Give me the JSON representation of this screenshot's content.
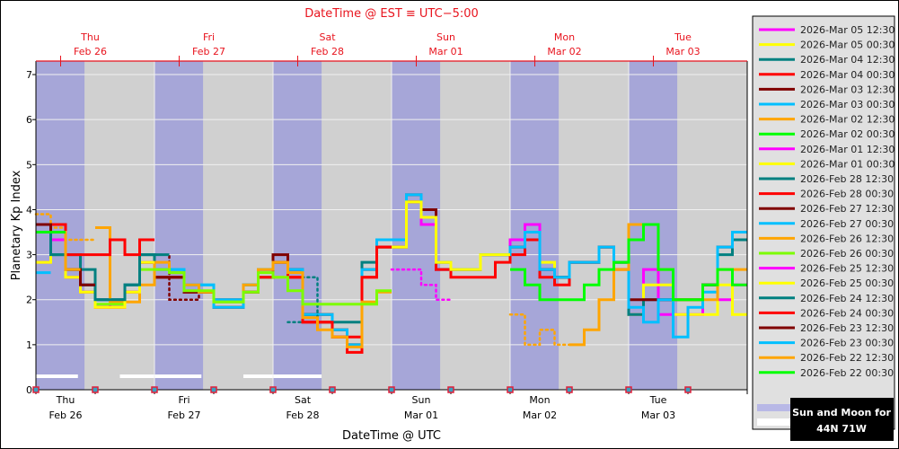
{
  "chart_data": {
    "type": "line",
    "step": true,
    "interval_hours": 3,
    "top_axis_title": "DateTime @ EST ≡ UTC−5:00",
    "xlabel": "DateTime @ UTC",
    "ylabel": "Planetary Kp Index",
    "xlim": [
      "2026-02-26T00:00",
      "2026-03-04T00:00"
    ],
    "ylim": [
      0,
      7.3
    ],
    "yticks": [
      0,
      1,
      2,
      3,
      4,
      5,
      6,
      7
    ],
    "bottom_tick_labels": [
      {
        "day": "Thu",
        "date": "Feb 26"
      },
      {
        "day": "Fri",
        "date": "Feb 27"
      },
      {
        "day": "Sat",
        "date": "Feb 28"
      },
      {
        "day": "Sun",
        "date": "Mar 01"
      },
      {
        "day": "Mon",
        "date": "Mar 02"
      },
      {
        "day": "Tue",
        "date": "Mar 03"
      }
    ],
    "top_tick_labels": [
      {
        "day": "Thu",
        "date": "Feb 26"
      },
      {
        "day": "Fri",
        "date": "Feb 27"
      },
      {
        "day": "Sat",
        "date": "Feb 28"
      },
      {
        "day": "Sun",
        "date": "Mar 01"
      },
      {
        "day": "Mon",
        "date": "Mar 02"
      },
      {
        "day": "Tue",
        "date": "Mar 03"
      }
    ],
    "grid": true,
    "legend_placement": "right",
    "colors": {
      "plot_bg": "#d0d0d0",
      "night": "#a6a6d8",
      "moon": "#ffffff",
      "top_axis": "#e8141e"
    },
    "night_bands": [
      [
        "2026-02-26T00:00",
        "2026-02-26T09:50"
      ],
      [
        "2026-02-27T00:00",
        "2026-02-27T09:50"
      ],
      [
        "2026-02-28T00:00",
        "2026-02-28T09:50"
      ],
      [
        "2026-03-01T00:00",
        "2026-03-01T09:50"
      ],
      [
        "2026-03-02T00:00",
        "2026-03-02T09:50"
      ],
      [
        "2026-03-03T00:00",
        "2026-03-03T09:50"
      ]
    ],
    "moon_bars": [
      [
        "2026-02-26T00:00",
        "2026-02-26T08:30"
      ],
      [
        "2026-02-26T17:00",
        "2026-02-27T09:30"
      ],
      [
        "2026-02-27T18:00",
        "2026-02-28T09:50"
      ]
    ],
    "series": [
      {
        "name": "2026-Mar 05 12:30",
        "color": "#ff00ff",
        "start": "2026-02-26T00:00",
        "values": [
          3.5,
          3.33,
          2.67,
          2.33,
          2.0,
          1.83,
          2.17,
          2.83,
          2.5,
          2.5,
          2.17,
          2.17,
          1.83,
          1.83,
          2.17,
          2.5,
          2.5,
          2.67,
          1.67,
          1.67,
          1.33,
          1.0,
          2.67,
          3.33,
          3.33,
          4.17,
          3.67,
          2.67,
          2.67,
          2.67,
          3.0,
          3.0,
          3.33,
          3.67,
          2.67,
          2.5,
          2.83,
          2.83,
          3.17,
          2.83,
          1.67,
          2.67,
          1.67,
          1.67,
          1.67,
          2.33,
          2.0,
          2.33
        ]
      },
      {
        "name": "2026-Mar 05 00:30",
        "color": "#ffff00",
        "start": "2026-02-26T00:00",
        "values": [
          2.83,
          3.5,
          2.5,
          2.17,
          1.83,
          1.83,
          2.17,
          2.83,
          2.5,
          2.5,
          2.17,
          2.17,
          1.83,
          1.83,
          2.17,
          2.5,
          2.5,
          2.5,
          1.67,
          1.67,
          1.33,
          1.0,
          2.67,
          3.17,
          3.17,
          4.17,
          3.83,
          2.83,
          2.67,
          2.67,
          3.0,
          3.0,
          3.17,
          3.5,
          2.83,
          2.5,
          2.83,
          2.83,
          3.17,
          2.83,
          1.67,
          2.33,
          2.33,
          1.67,
          1.67,
          1.67,
          2.33,
          1.67
        ]
      },
      {
        "name": "2026-Mar 04 12:30",
        "color": "#008080",
        "start": "2026-02-26T00:00",
        "values": [
          3.67,
          3.0,
          2.67,
          2.33,
          2.0,
          2.0,
          2.33,
          3.0,
          2.5,
          2.5,
          2.17,
          2.17,
          1.83,
          1.83,
          2.17,
          2.5,
          2.83,
          2.67,
          1.67,
          1.5,
          1.5,
          1.5,
          2.83,
          3.17,
          3.17,
          4.17,
          3.83,
          2.67,
          2.67,
          2.67,
          3.0,
          3.0,
          3.17,
          3.5,
          2.67,
          2.5,
          2.83,
          2.83,
          3.17,
          2.83,
          1.67,
          2.0,
          2.0,
          2.0,
          2.0,
          2.33,
          3.0,
          3.33
        ]
      },
      {
        "name": "2026-Mar 04 00:30",
        "color": "#ff0000",
        "start": "2026-02-26T00:00",
        "values": [
          3.67,
          3.5,
          2.5,
          2.17,
          1.83,
          1.83,
          2.17,
          2.83,
          2.5,
          2.5,
          2.17,
          2.17,
          1.83,
          1.83,
          2.17,
          2.5,
          2.83,
          2.5,
          1.5,
          1.5,
          1.17,
          0.83,
          2.5,
          3.17,
          3.17,
          4.17,
          3.83,
          2.67,
          2.5,
          2.5,
          2.5,
          2.83,
          3.0,
          3.33,
          2.5,
          2.33,
          2.83,
          2.83,
          3.17,
          2.67
        ]
      },
      {
        "name": "2026-Mar 03 12:30",
        "color": "#800000",
        "start": "2026-02-26T00:00",
        "values": [
          3.67,
          3.5,
          2.67,
          2.33,
          2.0,
          2.0,
          2.33,
          2.83,
          2.5,
          2.5,
          2.17,
          2.17,
          2.0,
          2.0,
          2.33,
          2.67,
          3.0,
          2.67,
          1.67,
          1.67,
          1.33,
          1.0,
          2.67,
          3.33,
          3.33,
          4.33,
          4.0,
          2.83,
          2.67,
          2.67,
          3.0,
          3.0,
          3.17,
          3.5,
          2.67,
          2.5,
          2.83,
          2.83,
          3.17,
          2.83,
          2.0,
          2.0,
          2.0,
          2.0,
          2.0,
          2.33,
          3.17,
          3.5
        ]
      },
      {
        "name": "2026-Mar 03 00:30",
        "color": "#00bfff",
        "start": "2026-02-26T00:00",
        "values": [
          3.5,
          3.33,
          2.67,
          2.33,
          2.0,
          2.0,
          2.33,
          2.83,
          2.67,
          2.67,
          2.33,
          2.33,
          1.83,
          1.83,
          2.33,
          2.67,
          2.83,
          2.67,
          1.67,
          1.67,
          1.33,
          1.0,
          2.67,
          3.33,
          3.33,
          4.33,
          3.83,
          2.83,
          2.67,
          2.67,
          3.0,
          3.0,
          3.17,
          3.5,
          2.67,
          2.5,
          2.83,
          2.83,
          3.17,
          2.83,
          1.83,
          1.5,
          2.0,
          1.17,
          1.83,
          2.17,
          3.17,
          3.5
        ]
      },
      {
        "name": "2026-Mar 02 12:30",
        "color": "#ffa500",
        "start": "2026-03-02T00:00",
        "dotted_count": 4,
        "values": [
          1.67,
          1.0,
          1.33,
          1.0,
          1.0,
          1.33,
          2.0,
          2.67,
          3.67,
          3.67,
          2.67,
          2.0,
          2.0,
          2.0,
          2.67,
          2.67
        ]
      },
      {
        "name": "2026-Mar 02 00:30",
        "color": "#00ff00",
        "start": "2026-03-02T00:00",
        "values": [
          2.67,
          2.33,
          2.0,
          2.0,
          2.0,
          2.33,
          2.67,
          2.83,
          3.33,
          3.67,
          2.67,
          2.0,
          2.0,
          2.33,
          2.67,
          2.33
        ]
      },
      {
        "name": "2026-Mar 01 12:30",
        "color": "#ff00ff",
        "start": "2026-03-01T00:00",
        "dotted_count": 4,
        "values": [
          2.67,
          2.67,
          2.33,
          2.0
        ]
      },
      {
        "name": "2026-Mar 01 00:30",
        "color": "#ffff00",
        "start": "2026-03-01T00:00",
        "values": [
          3.17,
          4.17,
          3.83,
          2.83,
          2.67,
          2.67,
          3.0,
          3.0
        ]
      },
      {
        "name": "2026-Feb 28 12:30",
        "color": "#008080",
        "start": "2026-02-28T03:00",
        "dotted_count": 5,
        "values": [
          1.5,
          2.5,
          1.33,
          1.17,
          1.17
        ]
      },
      {
        "name": "2026-Feb 28 00:30",
        "color": "#ff0000",
        "start": "2026-02-28T00:00",
        "values": [
          2.83,
          2.5,
          1.5,
          1.5,
          1.17,
          1.17,
          2.5,
          3.17
        ]
      },
      {
        "name": "2026-Feb 27 12:30",
        "color": "#800000",
        "start": "2026-02-27T00:00",
        "dotted_count": 6,
        "values": [
          3.0,
          2.0,
          2.0,
          2.33,
          2.0,
          2.0
        ]
      },
      {
        "name": "2026-Feb 27 00:30",
        "color": "#00bfff",
        "start": "2026-02-27T00:00",
        "values": [
          2.67,
          2.67,
          2.33,
          2.33,
          2.0,
          2.0,
          2.33,
          2.67
        ]
      },
      {
        "name": "2026-Feb 26 12:30",
        "color": "#ffa500",
        "start": "2026-02-26T00:00",
        "dotted_count": 4,
        "values": [
          3.9,
          3.6,
          3.33,
          3.33,
          3.6,
          1.95,
          1.95,
          2.33,
          2.83,
          2.6,
          2.33,
          2.17,
          1.95,
          1.95,
          2.33,
          2.67,
          2.83,
          2.6,
          1.6,
          1.33,
          1.17,
          0.95,
          1.95,
          2.17
        ]
      },
      {
        "name": "2026-Feb 26 00:30",
        "color": "#7cfc00",
        "start": "2026-02-26T00:00",
        "values": [
          3.5,
          3.5,
          2.5,
          2.17,
          1.9,
          1.9,
          2.17,
          2.67,
          2.67,
          2.6,
          2.2,
          2.2,
          1.95,
          1.95,
          2.17,
          2.6,
          2.5,
          2.2,
          1.9,
          1.9,
          1.9,
          1.9,
          1.9,
          2.2
        ]
      },
      {
        "name": "2026-Feb 25 12:30",
        "color": "#ff00ff",
        "start": "2026-02-26T00:00",
        "values": [
          2.83,
          3.33,
          2.5,
          2.17,
          1.83,
          1.83,
          2.17,
          2.83
        ]
      },
      {
        "name": "2026-Feb 25 00:30",
        "color": "#ffff00",
        "start": "2026-02-26T00:00",
        "values": [
          2.83,
          3.5,
          2.5,
          2.17,
          1.83,
          1.83,
          2.17,
          2.83
        ]
      },
      {
        "name": "2026-Feb 24 12:30",
        "color": "#008080",
        "start": "2026-02-26T00:00",
        "values": [
          3.67,
          3.0,
          3.0,
          2.67,
          2.0,
          2.0,
          2.33,
          3.0,
          3.0
        ]
      },
      {
        "name": "2026-Feb 24 00:30",
        "color": "#ff0000",
        "start": "2026-02-26T00:00",
        "values": [
          3.67,
          3.67,
          3.0,
          3.0,
          3.0,
          3.33,
          3.0,
          3.33
        ]
      },
      {
        "name": "2026-Feb 23 12:30",
        "color": "#800000",
        "start": "2026-02-26T00:00",
        "values": [
          3.67,
          3.5,
          2.67,
          2.33
        ]
      },
      {
        "name": "2026-Feb 23 00:30",
        "color": "#00bfff",
        "start": "2026-02-26T00:00",
        "values": [
          2.6
        ]
      },
      {
        "name": "2026-Feb 22 12:30",
        "color": "#ffa500",
        "start": "2026-02-26T00:00",
        "values": [
          3.5,
          3.5,
          2.67
        ]
      },
      {
        "name": "2026-Feb 22 00:30",
        "color": "#00ff00",
        "start": "2026-02-26T00:00",
        "values": [
          3.5,
          3.5
        ]
      }
    ],
    "sun_moon_legend": {
      "title_line1": "Sun and Moon for",
      "title_line2": "44N 71W",
      "night_color": "#b8b8e6",
      "moon_color": "#ffffff"
    }
  }
}
